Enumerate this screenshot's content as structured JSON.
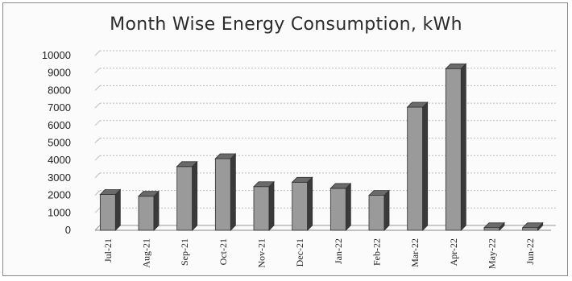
{
  "chart_data": {
    "type": "bar",
    "title": "Month Wise Energy Consumption, kWh",
    "categories": [
      "Jul-21",
      "Aug-21",
      "Sep-21",
      "Oct-21",
      "Nov-21",
      "Dec-21",
      "Jan-22",
      "Feb-22",
      "Mar-22",
      "Apr-22",
      "May-22",
      "Jun-22"
    ],
    "values": [
      2050,
      1950,
      3650,
      4100,
      2500,
      2750,
      2400,
      2000,
      7050,
      9250,
      150,
      150
    ],
    "ylim": [
      0,
      10000
    ],
    "yticks": [
      "0",
      "1000",
      "2000",
      "3000",
      "4000",
      "5000",
      "6000",
      "7000",
      "8000",
      "9000",
      "10000"
    ],
    "grid": true,
    "legend": "none",
    "colors": {
      "bar_front": "#9a9a9a",
      "bar_side": "#3a3a3a",
      "bar_top": "#6a6a6a",
      "grid": "#bdbdbd"
    }
  }
}
